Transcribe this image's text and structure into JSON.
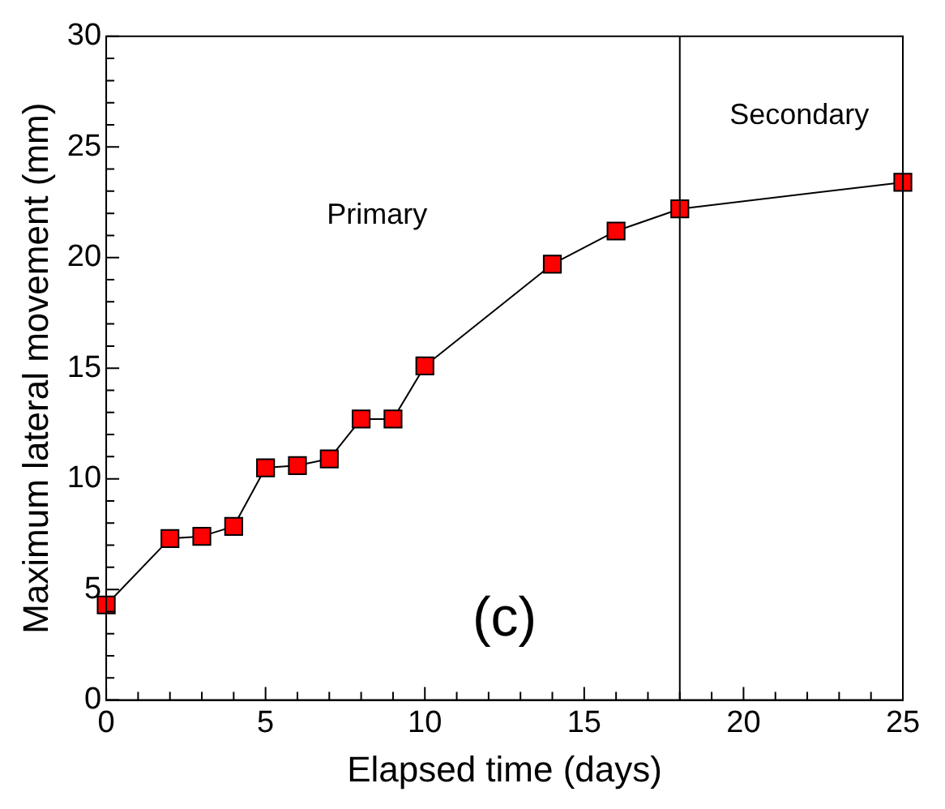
{
  "chart_data": {
    "type": "line",
    "xlabel": "Elapsed time (days)",
    "ylabel": "Maximum lateral movement (mm)",
    "x": [
      0,
      2,
      3,
      4,
      5,
      6,
      7,
      8,
      9,
      10,
      14,
      16,
      18,
      25
    ],
    "series": [
      {
        "color": "#ff0000",
        "values": [
          4.3,
          7.3,
          7.4,
          7.85,
          10.5,
          10.6,
          10.9,
          12.7,
          12.7,
          15.1,
          19.7,
          21.2,
          22.2,
          23.4
        ]
      }
    ],
    "xlim": [
      0,
      25
    ],
    "xticks": [
      0,
      5,
      10,
      15,
      20,
      25
    ],
    "ylim": [
      0,
      30
    ],
    "yticks": [
      0,
      5,
      10,
      15,
      20,
      25,
      30
    ],
    "marker": "square",
    "line_style": "solid",
    "grid": false,
    "legend": false,
    "ref_lines": [
      {
        "axis": "x",
        "value": 18,
        "color": "#000000"
      }
    ],
    "annotations": [
      "Primary",
      "Secondary",
      "(c)"
    ]
  }
}
